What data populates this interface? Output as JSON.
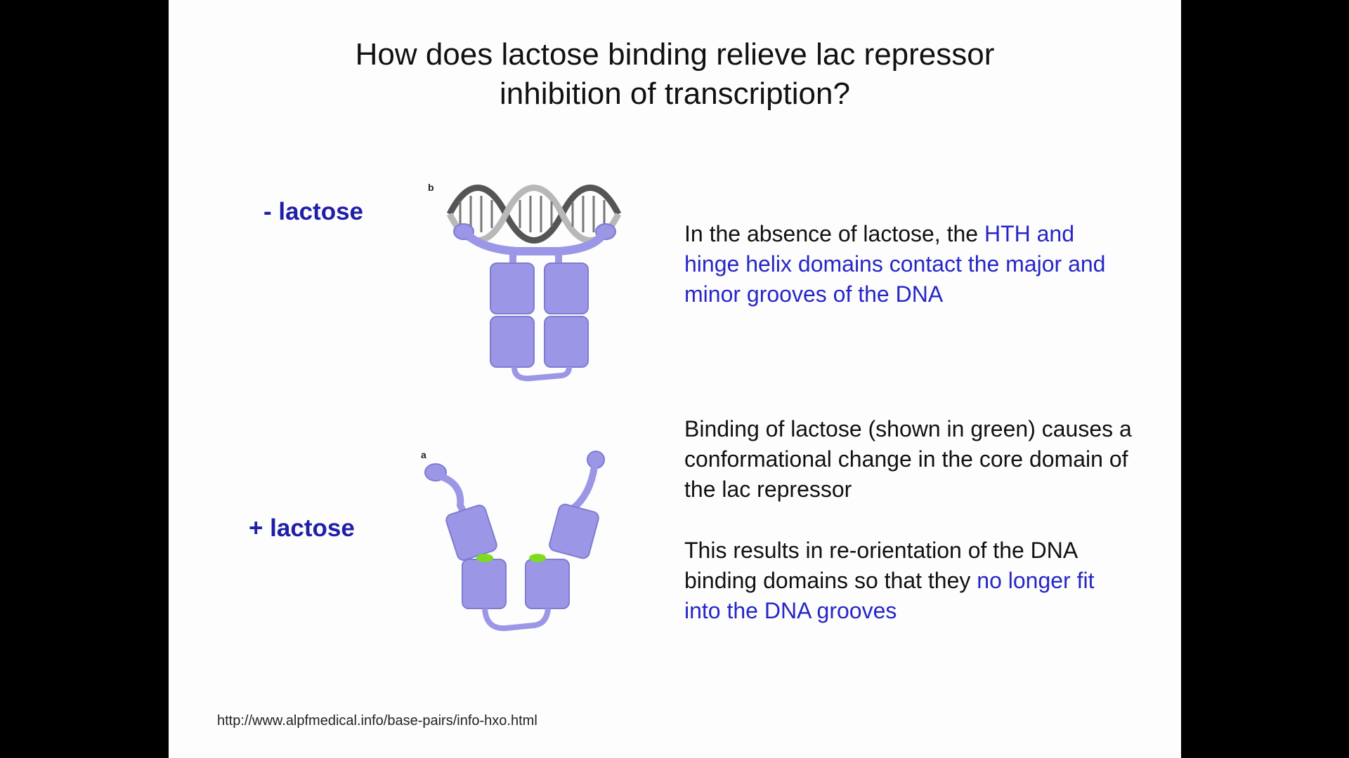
{
  "slide": {
    "title_line1": "How does lactose binding relieve lac repressor",
    "title_line2": "inhibition of transcription?",
    "minus_label": "- lactose",
    "plus_label": "+ lactose",
    "fig_b_letter": "b",
    "fig_a_letter": "a",
    "para1": {
      "plain": "In the absence of lactose, the ",
      "highlight": "HTH and hinge helix domains contact the major and minor grooves of the DNA"
    },
    "para2": "Binding of lactose (shown in green) causes a conformational change in the core domain of the lac repressor",
    "para3": {
      "plain": "This results in re-orientation of the DNA binding domains so that they ",
      "highlight": "no longer fit into the DNA grooves"
    },
    "source_url": "http://www.alpfmedical.info/base-pairs/info-hxo.html"
  },
  "colors": {
    "protein": "#9b97e6",
    "protein_edge": "#7f7bd0",
    "lactose": "#7ddc1f",
    "highlight_text": "#2626c8",
    "label_text": "#1f1fa8"
  }
}
